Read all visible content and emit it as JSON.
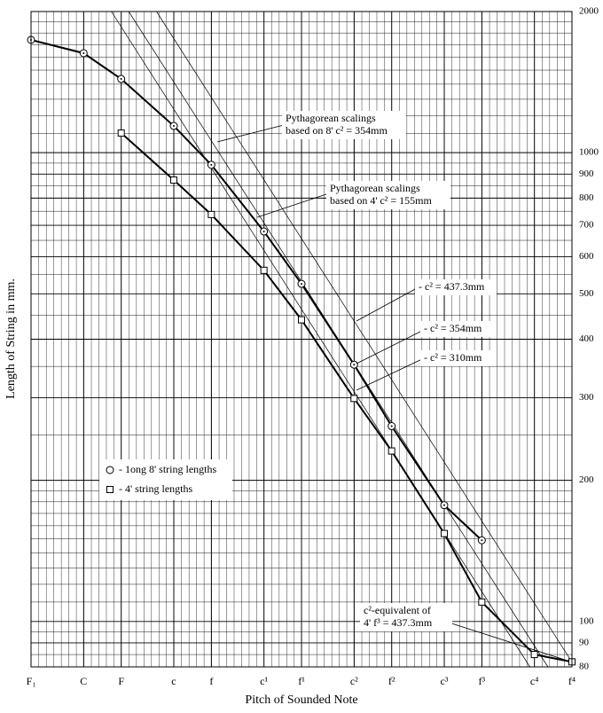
{
  "chart_data": {
    "type": "line",
    "x_label": "Pitch of Sounded Note",
    "y_label": "Length of String in mm.",
    "log_y": true,
    "grid": true,
    "xlim": [
      0,
      72
    ],
    "xticks": [
      {
        "value": 0,
        "label": "F₁"
      },
      {
        "value": 7,
        "label": "C"
      },
      {
        "value": 12,
        "label": "F"
      },
      {
        "value": 19,
        "label": "c"
      },
      {
        "value": 24,
        "label": "f"
      },
      {
        "value": 31,
        "label": "c¹"
      },
      {
        "value": 36,
        "label": "f¹"
      },
      {
        "value": 43,
        "label": "c²"
      },
      {
        "value": 48,
        "label": "f²"
      },
      {
        "value": 55,
        "label": "c³"
      },
      {
        "value": 60,
        "label": "f³"
      },
      {
        "value": 67,
        "label": "c⁴"
      },
      {
        "value": 72,
        "label": "f⁴"
      }
    ],
    "ylim": [
      80,
      2000
    ],
    "yticks": [
      80,
      90,
      100,
      200,
      300,
      400,
      500,
      600,
      700,
      800,
      900,
      1000,
      2000
    ],
    "y_minor_grid": [
      85,
      95,
      110,
      120,
      130,
      140,
      150,
      160,
      170,
      180,
      190,
      250,
      350,
      450,
      550,
      650,
      750,
      850,
      950,
      1100,
      1200,
      1300,
      1400,
      1500,
      1600,
      1700,
      1800,
      1900
    ],
    "series": [
      {
        "name": "- 1ong 8' string lengths",
        "marker": "circle",
        "color": "#000000",
        "x": [
          0,
          7,
          12,
          19,
          24,
          31,
          36,
          43,
          48,
          55,
          60
        ],
        "values": [
          1740,
          1630,
          1436,
          1140,
          942,
          679,
          525,
          353,
          261,
          177,
          149
        ]
      },
      {
        "name": "- 4' string lengths",
        "marker": "square",
        "color": "#000000",
        "x": [
          12,
          19,
          24,
          31,
          36,
          43,
          48,
          55,
          60,
          67,
          72
        ],
        "values": [
          1101,
          874,
          738,
          561,
          440,
          299,
          231,
          154,
          110,
          85,
          82
        ]
      }
    ],
    "reference_lines": [
      {
        "x": [
          13,
          68.8
        ],
        "values": [
          2000,
          80
        ]
      },
      {
        "x": [
          16.7,
          72
        ],
        "values": [
          2000,
          81.9
        ]
      },
      {
        "x": [
          10.7,
          66.4
        ],
        "values": [
          2000,
          80
        ]
      }
    ],
    "annotations": [
      {
        "lines": [
          "Pythagorean scalings",
          "based on 8' c² = 354mm"
        ]
      },
      {
        "lines": [
          "Pythagorean scalings",
          "based on 4' c² = 155mm"
        ]
      },
      {
        "lines": [
          "- c² = 437.3mm"
        ]
      },
      {
        "lines": [
          "- c² = 354mm"
        ]
      },
      {
        "lines": [
          "- c² = 310mm"
        ]
      },
      {
        "lines": [
          "c²-equivalent of",
          "4' f³ = 437.3mm"
        ]
      }
    ]
  }
}
